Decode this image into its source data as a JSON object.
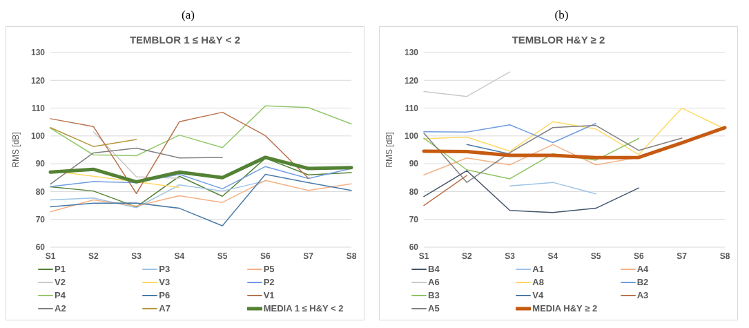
{
  "chart_data": [
    {
      "type": "line",
      "annotations": [
        "(a)"
      ],
      "title": "TEMBLOR 1 ≤ H&Y < 2",
      "ylabel": "RMS [dB]",
      "categories": [
        "S1",
        "S2",
        "S3",
        "S4",
        "S5",
        "S6",
        "S7",
        "S8"
      ],
      "ylim": [
        60,
        130
      ],
      "yticks": [
        60,
        70,
        80,
        90,
        100,
        110,
        120,
        130
      ],
      "grid": "y",
      "legend": "bottom",
      "marker": "none",
      "line_style": "solid",
      "series": [
        {
          "name": "P1",
          "color": "#548235",
          "values": [
            81.7,
            80.2,
            74.5,
            85.5,
            78.3,
            92,
            86,
            86.8
          ]
        },
        {
          "name": "P3",
          "color": "#9dc3e6",
          "values": [
            77,
            77.7,
            74.2,
            82.4,
            80.2,
            83.8,
            null,
            null
          ]
        },
        {
          "name": "P5",
          "color": "#f4b183",
          "values": [
            72.7,
            77,
            74.8,
            78.5,
            76.1,
            84,
            80.4,
            82.8
          ]
        },
        {
          "name": "V2",
          "color": "#c9c9c9",
          "values": [
            null,
            101.5,
            85.3,
            84.8,
            null,
            null,
            null,
            null
          ]
        },
        {
          "name": "V3",
          "color": "#ffd966",
          "values": [
            87.5,
            85.5,
            83.5,
            81.5,
            null,
            null,
            null,
            null
          ]
        },
        {
          "name": "P2",
          "color": "#6f9ce0",
          "values": [
            81.8,
            83.6,
            83.2,
            86.2,
            81,
            89,
            84.7,
            88.3
          ]
        },
        {
          "name": "P4",
          "color": "#92c96a",
          "values": [
            102.8,
            93.2,
            92.9,
            100.3,
            95.8,
            110.8,
            110.2,
            104.3
          ]
        },
        {
          "name": "P6",
          "color": "#4a7aa8",
          "values": [
            74.5,
            75.8,
            75.9,
            74,
            67.7,
            86.2,
            83.2,
            80.4
          ]
        },
        {
          "name": "V1",
          "color": "#b9724c",
          "values": [
            106.2,
            103.4,
            79.3,
            105.1,
            108.5,
            100.1,
            84.8,
            null
          ]
        },
        {
          "name": "A2",
          "color": "#7f7f7f",
          "values": [
            82.7,
            93.9,
            95.6,
            92.1,
            92.3,
            null,
            null,
            null
          ]
        },
        {
          "name": "A7",
          "color": "#b5953a",
          "values": [
            103,
            96.2,
            98.7,
            null,
            null,
            null,
            null,
            null
          ]
        },
        {
          "name": "MEDIA 1 ≤ H&Y < 2",
          "color": "#548235",
          "values": [
            87,
            88,
            83.5,
            87,
            85,
            92.3,
            88.3,
            88.6
          ]
        }
      ]
    },
    {
      "type": "line",
      "annotations": [
        "(b)"
      ],
      "title": "TEMBLOR H&Y ≥ 2",
      "ylabel": "RMS [dB]",
      "categories": [
        "S1",
        "S2",
        "S3",
        "S4",
        "S5",
        "S6",
        "S7",
        "S8"
      ],
      "ylim": [
        60,
        130
      ],
      "yticks": [
        60,
        70,
        80,
        90,
        100,
        110,
        120,
        130
      ],
      "grid": "y",
      "legend": "bottom",
      "marker": "none",
      "line_style": "solid",
      "series": [
        {
          "name": "B4",
          "color": "#44546a",
          "values": [
            78.2,
            87.5,
            73.2,
            72.5,
            74,
            81.3,
            null,
            null
          ]
        },
        {
          "name": "A1",
          "color": "#9dc3e6",
          "values": [
            null,
            null,
            82,
            83.3,
            79.2,
            null,
            null,
            null
          ]
        },
        {
          "name": "A4",
          "color": "#f4b183",
          "values": [
            86,
            92.1,
            89.6,
            96.9,
            89.6,
            92.3,
            null,
            null
          ]
        },
        {
          "name": "A6",
          "color": "#c9c9c9",
          "values": [
            116,
            114.2,
            123,
            null,
            null,
            null,
            null,
            null
          ]
        },
        {
          "name": "A8",
          "color": "#ffd966",
          "values": [
            99,
            99.6,
            94.5,
            105.1,
            102.5,
            93.3,
            110,
            102.5
          ]
        },
        {
          "name": "B2",
          "color": "#6f9ce0",
          "values": [
            101.5,
            101.4,
            104,
            97.6,
            104.5,
            null,
            null,
            null
          ]
        },
        {
          "name": "B3",
          "color": "#8fc464",
          "values": [
            99.2,
            87.8,
            84.6,
            93.6,
            91.3,
            99.1,
            null,
            null
          ]
        },
        {
          "name": "V4",
          "color": "#4a7aa8",
          "values": [
            null,
            96.9,
            93.5,
            null,
            null,
            null,
            null,
            null
          ]
        },
        {
          "name": "A3",
          "color": "#b9724c",
          "values": [
            75,
            85.8,
            null,
            null,
            null,
            null,
            null,
            null
          ]
        },
        {
          "name": "A5",
          "color": "#808080",
          "values": [
            101,
            83.3,
            94,
            103,
            103.8,
            94.8,
            99.2,
            null
          ]
        },
        {
          "name": "MEDIA H&Y ≥ 2",
          "color": "#c55a11",
          "values": [
            94.5,
            94.4,
            93,
            93,
            92.2,
            92.3,
            97.5,
            103
          ]
        }
      ]
    }
  ]
}
